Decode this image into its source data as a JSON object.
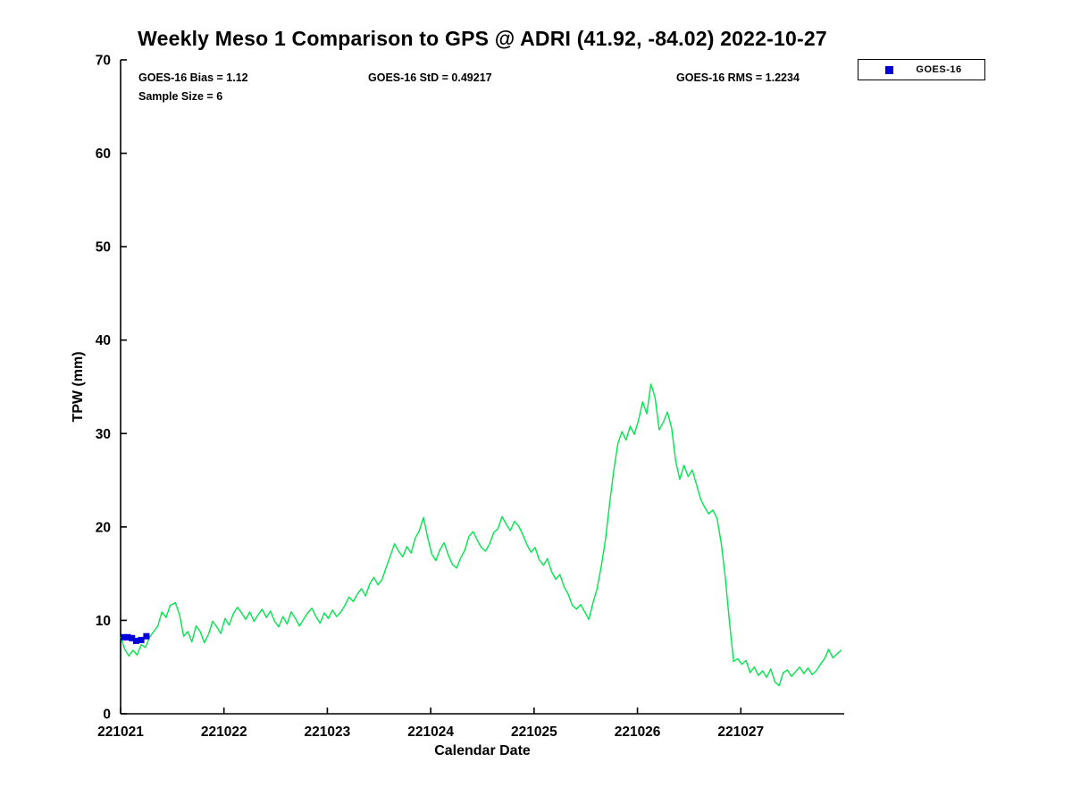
{
  "chart_data": {
    "type": "line",
    "title": "Weekly Meso 1 Comparison to GPS @ ADRI (41.92, -84.02) 2022-10-27",
    "xlabel": "Calendar Date",
    "ylabel": "TPW (mm)",
    "xlim": [
      221021,
      221028
    ],
    "ylim": [
      0,
      70
    ],
    "xticks": [
      221021,
      221022,
      221023,
      221024,
      221025,
      221026,
      221027
    ],
    "yticks": [
      0,
      10,
      20,
      30,
      40,
      50,
      60,
      70
    ],
    "grid": false,
    "legend_position": "top-right",
    "stats": {
      "bias": "GOES-16 Bias = 1.12",
      "std": "GOES-16 StD = 0.49217",
      "rms": "GOES-16 RMS = 1.2234",
      "sample_size": "Sample Size = 6"
    },
    "series": [
      {
        "name": "GPS",
        "type": "line",
        "color": "#00e64d",
        "x_base": 221021,
        "points": [
          [
            0.0,
            8.2
          ],
          [
            0.04,
            6.9
          ],
          [
            0.08,
            6.2
          ],
          [
            0.12,
            6.8
          ],
          [
            0.16,
            6.3
          ],
          [
            0.2,
            7.4
          ],
          [
            0.24,
            7.1
          ],
          [
            0.28,
            8.2
          ],
          [
            0.32,
            8.8
          ],
          [
            0.36,
            9.4
          ],
          [
            0.4,
            10.9
          ],
          [
            0.44,
            10.3
          ],
          [
            0.48,
            11.6
          ],
          [
            0.53,
            11.9
          ],
          [
            0.57,
            10.6
          ],
          [
            0.61,
            8.3
          ],
          [
            0.65,
            8.8
          ],
          [
            0.69,
            7.7
          ],
          [
            0.73,
            9.4
          ],
          [
            0.77,
            8.8
          ],
          [
            0.81,
            7.6
          ],
          [
            0.85,
            8.5
          ],
          [
            0.89,
            9.9
          ],
          [
            0.93,
            9.3
          ],
          [
            0.97,
            8.6
          ],
          [
            1.01,
            10.2
          ],
          [
            1.05,
            9.5
          ],
          [
            1.09,
            10.7
          ],
          [
            1.13,
            11.4
          ],
          [
            1.17,
            10.8
          ],
          [
            1.21,
            10.1
          ],
          [
            1.25,
            10.9
          ],
          [
            1.29,
            9.9
          ],
          [
            1.33,
            10.6
          ],
          [
            1.37,
            11.2
          ],
          [
            1.41,
            10.3
          ],
          [
            1.45,
            11.0
          ],
          [
            1.49,
            9.9
          ],
          [
            1.53,
            9.3
          ],
          [
            1.57,
            10.4
          ],
          [
            1.61,
            9.6
          ],
          [
            1.65,
            10.9
          ],
          [
            1.69,
            10.2
          ],
          [
            1.73,
            9.4
          ],
          [
            1.77,
            10.1
          ],
          [
            1.81,
            10.8
          ],
          [
            1.85,
            11.3
          ],
          [
            1.89,
            10.4
          ],
          [
            1.93,
            9.7
          ],
          [
            1.97,
            10.8
          ],
          [
            2.01,
            10.2
          ],
          [
            2.05,
            11.1
          ],
          [
            2.09,
            10.4
          ],
          [
            2.13,
            10.9
          ],
          [
            2.17,
            11.6
          ],
          [
            2.21,
            12.5
          ],
          [
            2.25,
            12.0
          ],
          [
            2.29,
            12.8
          ],
          [
            2.33,
            13.4
          ],
          [
            2.37,
            12.6
          ],
          [
            2.41,
            13.9
          ],
          [
            2.45,
            14.6
          ],
          [
            2.49,
            13.8
          ],
          [
            2.53,
            14.4
          ],
          [
            2.57,
            15.7
          ],
          [
            2.61,
            16.9
          ],
          [
            2.65,
            18.2
          ],
          [
            2.69,
            17.4
          ],
          [
            2.73,
            16.8
          ],
          [
            2.77,
            17.9
          ],
          [
            2.81,
            17.2
          ],
          [
            2.85,
            18.8
          ],
          [
            2.89,
            19.6
          ],
          [
            2.93,
            21.0
          ],
          [
            2.97,
            18.9
          ],
          [
            3.01,
            17.1
          ],
          [
            3.05,
            16.4
          ],
          [
            3.09,
            17.6
          ],
          [
            3.13,
            18.3
          ],
          [
            3.17,
            17.0
          ],
          [
            3.21,
            16.0
          ],
          [
            3.25,
            15.6
          ],
          [
            3.29,
            16.7
          ],
          [
            3.33,
            17.5
          ],
          [
            3.37,
            19.0
          ],
          [
            3.41,
            19.5
          ],
          [
            3.45,
            18.6
          ],
          [
            3.49,
            17.8
          ],
          [
            3.53,
            17.4
          ],
          [
            3.57,
            18.2
          ],
          [
            3.61,
            19.4
          ],
          [
            3.65,
            19.8
          ],
          [
            3.69,
            21.1
          ],
          [
            3.73,
            20.3
          ],
          [
            3.77,
            19.6
          ],
          [
            3.81,
            20.6
          ],
          [
            3.85,
            20.1
          ],
          [
            3.89,
            19.2
          ],
          [
            3.93,
            18.1
          ],
          [
            3.97,
            17.3
          ],
          [
            4.01,
            17.8
          ],
          [
            4.05,
            16.5
          ],
          [
            4.09,
            15.9
          ],
          [
            4.13,
            16.6
          ],
          [
            4.17,
            15.2
          ],
          [
            4.21,
            14.4
          ],
          [
            4.25,
            14.9
          ],
          [
            4.29,
            13.6
          ],
          [
            4.33,
            12.8
          ],
          [
            4.37,
            11.6
          ],
          [
            4.41,
            11.2
          ],
          [
            4.45,
            11.7
          ],
          [
            4.49,
            10.9
          ],
          [
            4.53,
            10.1
          ],
          [
            4.57,
            11.9
          ],
          [
            4.61,
            13.4
          ],
          [
            4.65,
            15.8
          ],
          [
            4.69,
            18.6
          ],
          [
            4.73,
            22.4
          ],
          [
            4.77,
            26.0
          ],
          [
            4.81,
            28.9
          ],
          [
            4.85,
            30.2
          ],
          [
            4.89,
            29.3
          ],
          [
            4.93,
            30.8
          ],
          [
            4.97,
            29.9
          ],
          [
            5.01,
            31.4
          ],
          [
            5.05,
            33.4
          ],
          [
            5.09,
            32.1
          ],
          [
            5.13,
            35.3
          ],
          [
            5.17,
            33.9
          ],
          [
            5.21,
            30.4
          ],
          [
            5.25,
            31.2
          ],
          [
            5.29,
            32.3
          ],
          [
            5.33,
            30.6
          ],
          [
            5.37,
            27.0
          ],
          [
            5.41,
            25.1
          ],
          [
            5.45,
            26.6
          ],
          [
            5.49,
            25.4
          ],
          [
            5.53,
            26.1
          ],
          [
            5.57,
            24.6
          ],
          [
            5.61,
            23.0
          ],
          [
            5.65,
            22.1
          ],
          [
            5.69,
            21.4
          ],
          [
            5.73,
            21.8
          ],
          [
            5.77,
            20.9
          ],
          [
            5.81,
            18.3
          ],
          [
            5.85,
            14.6
          ],
          [
            5.89,
            9.8
          ],
          [
            5.93,
            5.6
          ],
          [
            5.97,
            5.9
          ],
          [
            6.01,
            5.3
          ],
          [
            6.05,
            5.7
          ],
          [
            6.09,
            4.4
          ],
          [
            6.13,
            5.0
          ],
          [
            6.17,
            4.1
          ],
          [
            6.21,
            4.6
          ],
          [
            6.25,
            3.9
          ],
          [
            6.29,
            4.8
          ],
          [
            6.33,
            3.4
          ],
          [
            6.37,
            3.0
          ],
          [
            6.41,
            4.4
          ],
          [
            6.45,
            4.7
          ],
          [
            6.49,
            4.0
          ],
          [
            6.53,
            4.5
          ],
          [
            6.57,
            5.0
          ],
          [
            6.61,
            4.3
          ],
          [
            6.65,
            4.9
          ],
          [
            6.69,
            4.2
          ],
          [
            6.73,
            4.6
          ],
          [
            6.77,
            5.3
          ],
          [
            6.81,
            5.9
          ],
          [
            6.85,
            6.9
          ],
          [
            6.89,
            6.0
          ],
          [
            6.93,
            6.4
          ],
          [
            6.97,
            6.8
          ]
        ]
      },
      {
        "name": "GOES-16",
        "type": "scatter",
        "marker": "square",
        "color": "#0000dd",
        "x_base": 221021,
        "points": [
          [
            0.03,
            8.2
          ],
          [
            0.07,
            8.2
          ],
          [
            0.11,
            8.1
          ],
          [
            0.15,
            7.8
          ],
          [
            0.2,
            7.9
          ],
          [
            0.25,
            8.3
          ]
        ]
      }
    ]
  }
}
